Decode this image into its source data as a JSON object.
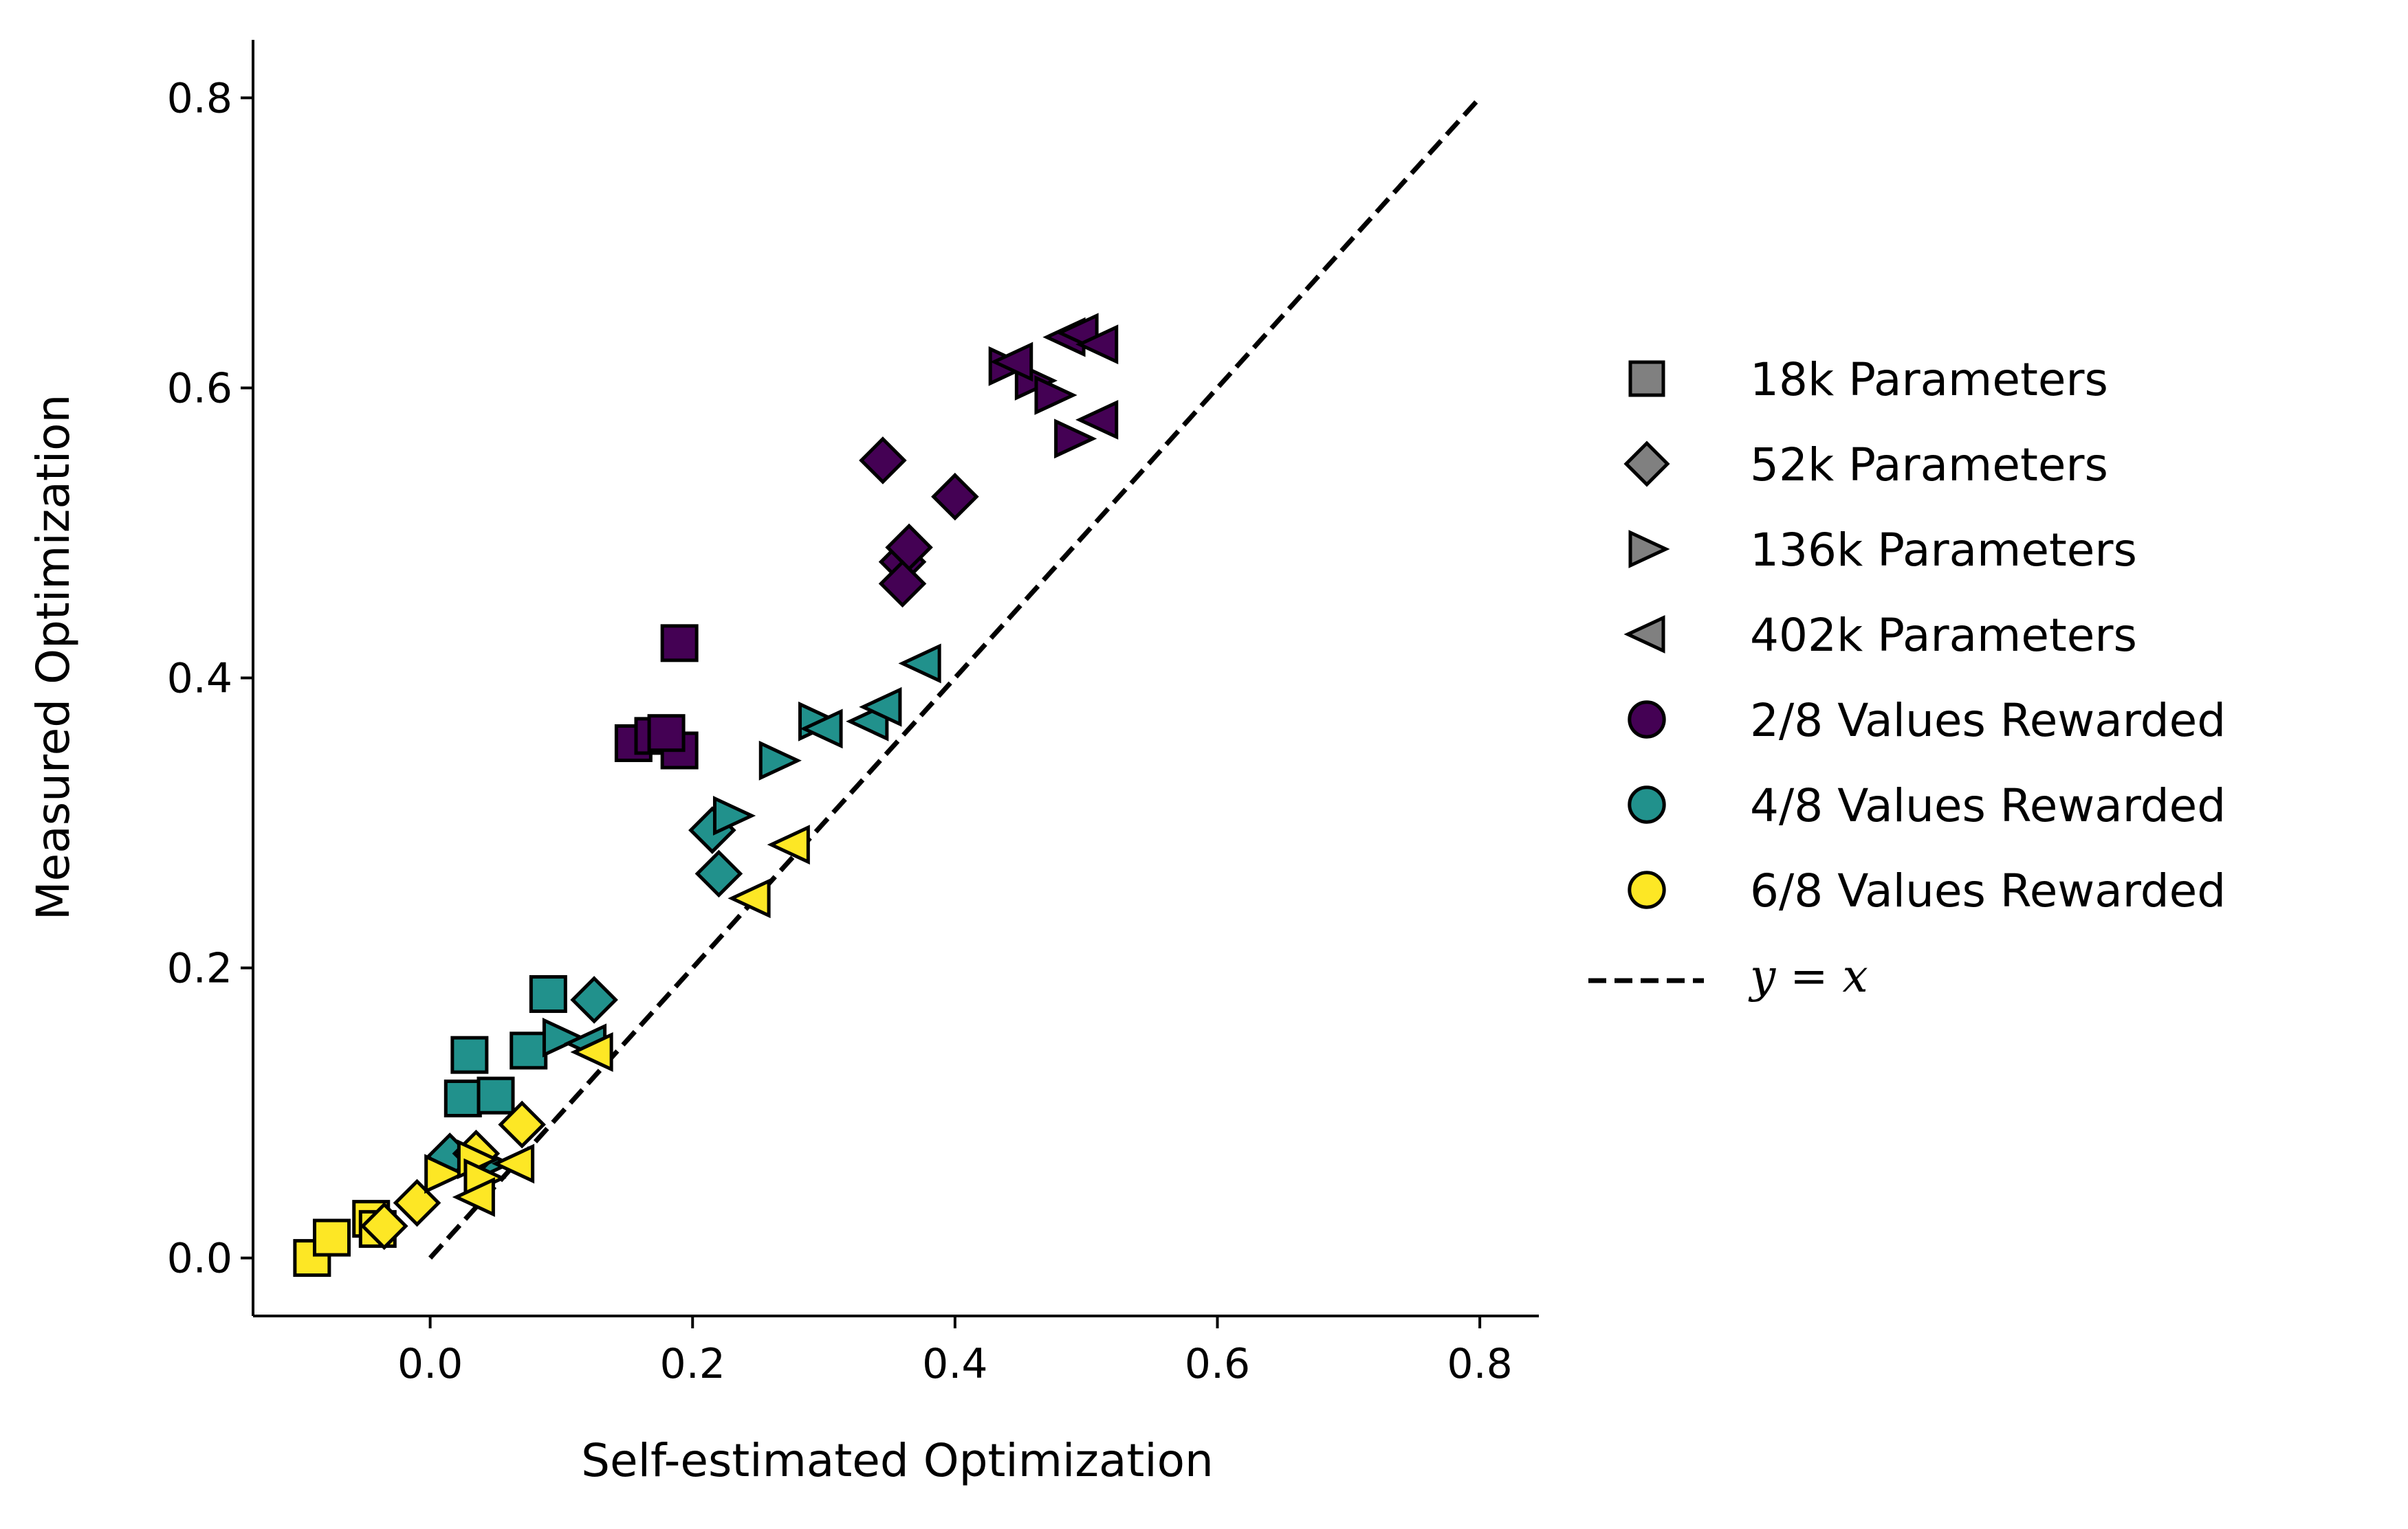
{
  "chart_data": {
    "type": "scatter",
    "title": "",
    "xlabel": "Self-estimated Optimization",
    "ylabel": "Measured Optimization",
    "xlim": [
      -0.135,
      0.845
    ],
    "ylim": [
      -0.04,
      0.84
    ],
    "xticks": [
      0.0,
      0.2,
      0.4,
      0.6,
      0.8
    ],
    "yticks": [
      0.0,
      0.2,
      0.4,
      0.6,
      0.8
    ],
    "xtick_labels": [
      "0.0",
      "0.2",
      "0.4",
      "0.6",
      "0.8"
    ],
    "ytick_labels": [
      "0.0",
      "0.2",
      "0.4",
      "0.6",
      "0.8"
    ],
    "grid": false,
    "legend_position": "right",
    "reference_line": {
      "label": "y = x",
      "x": [
        0.0,
        0.8
      ],
      "y": [
        0.0,
        0.8
      ],
      "style": "dashed",
      "color": "#000000"
    },
    "marker_shapes": {
      "18k": "square",
      "52k": "diamond",
      "136k": "triangle-right",
      "402k": "triangle-left"
    },
    "group_colors": {
      "2/8": "#440154",
      "4/8": "#21918c",
      "6/8": "#fde725"
    },
    "legend": [
      {
        "label": "18k Parameters",
        "marker": "square",
        "color": "#808080"
      },
      {
        "label": "52k Parameters",
        "marker": "diamond",
        "color": "#808080"
      },
      {
        "label": "136k Parameters",
        "marker": "triangle-right",
        "color": "#808080"
      },
      {
        "label": "402k Parameters",
        "marker": "triangle-left",
        "color": "#808080"
      },
      {
        "label": "2/8 Values Rewarded",
        "marker": "circle",
        "color": "#440154"
      },
      {
        "label": "4/8 Values Rewarded",
        "marker": "circle",
        "color": "#21918c"
      },
      {
        "label": "6/8 Values Rewarded",
        "marker": "circle",
        "color": "#fde725"
      },
      {
        "label": "y = x",
        "marker": "dashed-line",
        "color": "#000000"
      }
    ],
    "series": [
      {
        "name": "18k, 2/8",
        "params": "18k",
        "rewarded": "2/8",
        "x": [
          0.155,
          0.17,
          0.19,
          0.18,
          0.19
        ],
        "y": [
          0.355,
          0.36,
          0.35,
          0.362,
          0.424
        ]
      },
      {
        "name": "52k, 2/8",
        "params": "52k",
        "rewarded": "2/8",
        "x": [
          0.345,
          0.36,
          0.365,
          0.36,
          0.4
        ],
        "y": [
          0.55,
          0.48,
          0.49,
          0.465,
          0.525
        ]
      },
      {
        "name": "136k, 2/8",
        "params": "136k",
        "rewarded": "2/8",
        "x": [
          0.44,
          0.46,
          0.475,
          0.49
        ],
        "y": [
          0.615,
          0.605,
          0.595,
          0.565
        ]
      },
      {
        "name": "402k, 2/8",
        "params": "402k",
        "rewarded": "2/8",
        "x": [
          0.445,
          0.485,
          0.495,
          0.51,
          0.51
        ],
        "y": [
          0.618,
          0.635,
          0.638,
          0.63,
          0.578
        ]
      },
      {
        "name": "18k, 4/8",
        "params": "18k",
        "rewarded": "4/8",
        "x": [
          0.025,
          0.03,
          0.05,
          0.075,
          0.09
        ],
        "y": [
          0.11,
          0.14,
          0.112,
          0.143,
          0.182
        ]
      },
      {
        "name": "52k, 4/8",
        "params": "52k",
        "rewarded": "4/8",
        "x": [
          0.015,
          0.22,
          0.215,
          0.125
        ],
        "y": [
          0.07,
          0.265,
          0.295,
          0.178
        ]
      },
      {
        "name": "136k, 4/8",
        "params": "136k",
        "rewarded": "4/8",
        "x": [
          0.1,
          0.23,
          0.265,
          0.295,
          0.045
        ],
        "y": [
          0.152,
          0.305,
          0.343,
          0.37,
          0.065
        ]
      },
      {
        "name": "402k, 4/8",
        "params": "402k",
        "rewarded": "4/8",
        "x": [
          0.12,
          0.3,
          0.335,
          0.345,
          0.375
        ],
        "y": [
          0.148,
          0.365,
          0.37,
          0.38,
          0.41
        ]
      },
      {
        "name": "18k, 6/8",
        "params": "18k",
        "rewarded": "6/8",
        "x": [
          -0.09,
          -0.075,
          -0.045,
          -0.04
        ],
        "y": [
          0.0,
          0.014,
          0.027,
          0.02
        ]
      },
      {
        "name": "52k, 6/8",
        "params": "52k",
        "rewarded": "6/8",
        "x": [
          -0.035,
          -0.01,
          0.035,
          0.07
        ],
        "y": [
          0.022,
          0.038,
          0.072,
          0.092
        ]
      },
      {
        "name": "136k, 6/8",
        "params": "136k",
        "rewarded": "6/8",
        "x": [
          0.01,
          0.035,
          0.04
        ],
        "y": [
          0.058,
          0.068,
          0.055
        ]
      },
      {
        "name": "402k, 6/8",
        "params": "402k",
        "rewarded": "6/8",
        "x": [
          0.035,
          0.065,
          0.125,
          0.245,
          0.275
        ],
        "y": [
          0.042,
          0.065,
          0.142,
          0.248,
          0.285
        ]
      }
    ]
  }
}
